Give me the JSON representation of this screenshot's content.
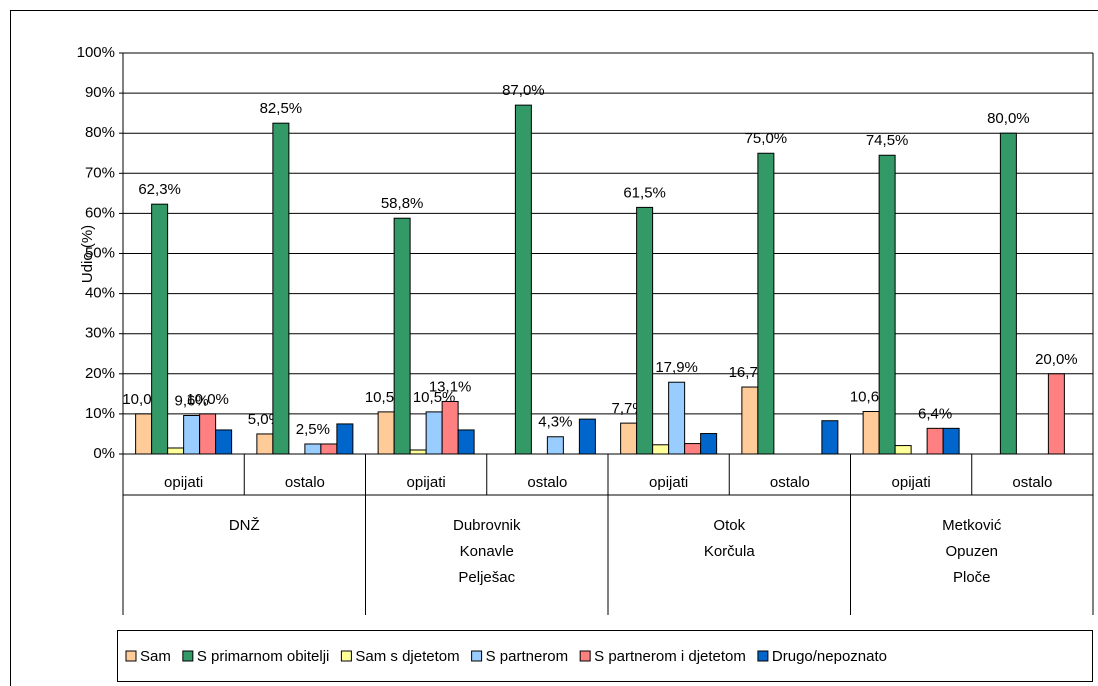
{
  "chart_data": {
    "type": "bar",
    "y_label": "Udio (%)",
    "categories": [
      "opijati",
      "ostalo",
      "opijati",
      "ostalo",
      "opijati",
      "ostalo",
      "opijati",
      "ostalo"
    ],
    "groups": [
      [
        "DNŽ"
      ],
      [
        "Dubrovnik",
        "Konavle",
        "Pelješac"
      ],
      [
        "Otok",
        "Korčula"
      ],
      [
        "Metković",
        "Opuzen",
        "Ploče"
      ]
    ],
    "ylim": [
      0,
      100
    ],
    "yticks": [
      {
        "value": 0,
        "label": "0%"
      },
      {
        "value": 10,
        "label": "10%"
      },
      {
        "value": 20,
        "label": "20%"
      },
      {
        "value": 30,
        "label": "30%"
      },
      {
        "value": 40,
        "label": "40%"
      },
      {
        "value": 50,
        "label": "50%"
      },
      {
        "value": 60,
        "label": "60%"
      },
      {
        "value": 70,
        "label": "70%"
      },
      {
        "value": 80,
        "label": "80%"
      },
      {
        "value": 90,
        "label": "90%"
      },
      {
        "value": 100,
        "label": "100%"
      }
    ],
    "grid": true,
    "legend": "bottom",
    "series": [
      {
        "name": "Sam",
        "color": "#FFCC99",
        "values": [
          10.0,
          5.0,
          10.5,
          0,
          7.7,
          16.7,
          10.6,
          0
        ],
        "value_labels": [
          "10,0%",
          "5,0%",
          "10,5%",
          null,
          "7,7%",
          "16,7%",
          "10,6%",
          null
        ]
      },
      {
        "name": "S primarnom obitelji",
        "color": "#339966",
        "values": [
          62.3,
          82.5,
          58.8,
          87.0,
          61.5,
          75.0,
          74.5,
          80.0
        ],
        "value_labels": [
          "62,3%",
          "82,5%",
          "58,8%",
          "87,0%",
          "61,5%",
          "75,0%",
          "74,5%",
          "80,0%"
        ]
      },
      {
        "name": "Sam s djetetom",
        "color": "#FFFF99",
        "values": [
          1.5,
          0,
          1.0,
          0,
          2.3,
          0,
          2.1,
          0
        ],
        "value_labels": [
          null,
          null,
          null,
          null,
          null,
          null,
          null,
          null
        ]
      },
      {
        "name": "S partnerom",
        "color": "#99CCFF",
        "values": [
          9.6,
          2.5,
          10.5,
          4.3,
          17.9,
          0,
          0,
          0
        ],
        "value_labels": [
          "9,6%",
          "2,5%",
          "10,5%",
          "4,3%",
          "17,9%",
          null,
          null,
          null
        ]
      },
      {
        "name": "S partnerom i djetetom",
        "color": "#FF8080",
        "values": [
          10.0,
          2.5,
          13.1,
          0,
          2.6,
          0,
          6.4,
          20.0
        ],
        "value_labels": [
          "10,0%",
          null,
          "13,1%",
          null,
          null,
          null,
          "6,4%",
          "20,0%"
        ]
      },
      {
        "name": "Drugo/nepoznato",
        "color": "#0066CC",
        "values": [
          6.0,
          7.5,
          6.0,
          8.7,
          5.1,
          8.3,
          6.4,
          0
        ],
        "value_labels": [
          null,
          null,
          null,
          null,
          null,
          null,
          null,
          null
        ]
      }
    ]
  }
}
